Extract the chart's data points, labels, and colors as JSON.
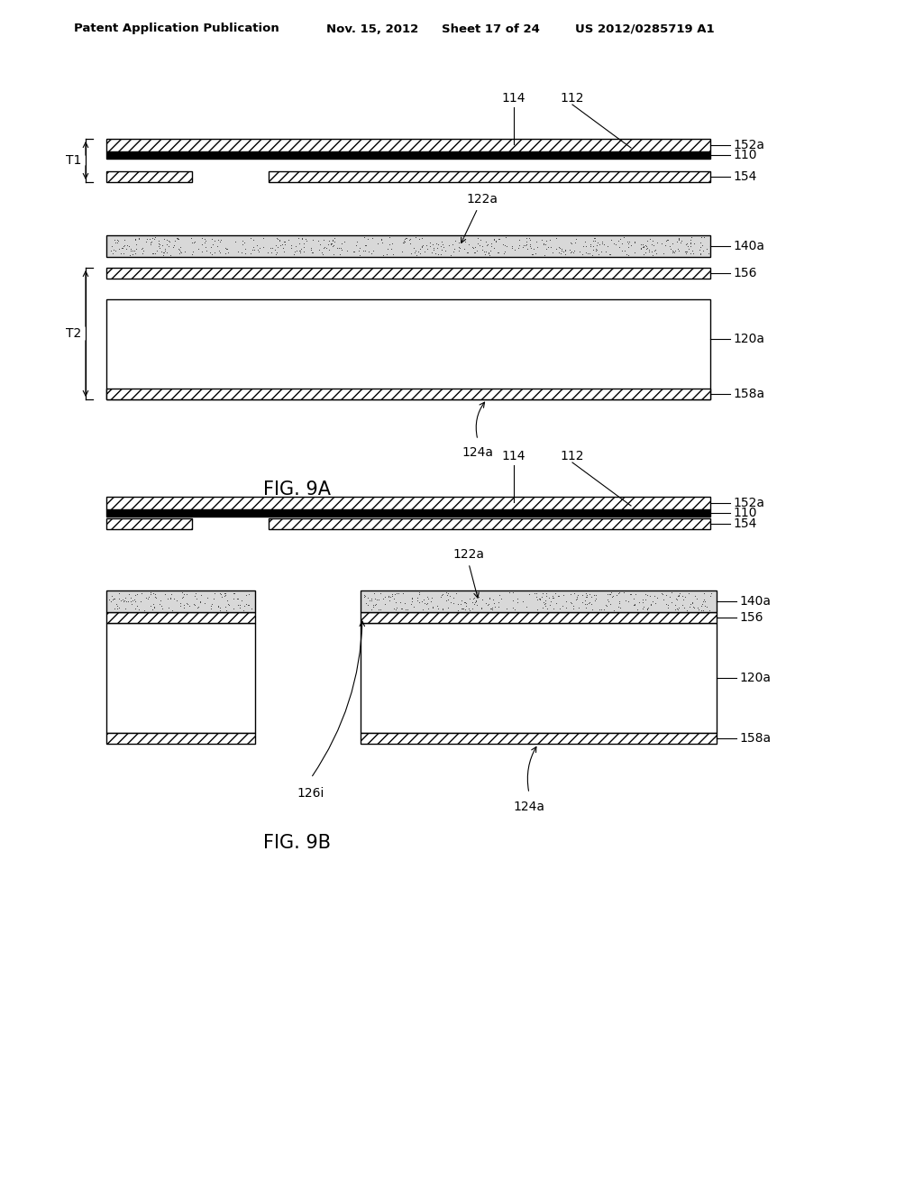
{
  "bg_color": "#ffffff",
  "header_text": "Patent Application Publication",
  "header_date": "Nov. 15, 2012",
  "header_sheet": "Sheet 17 of 24",
  "header_patent": "US 2012/0285719 A1",
  "fig9a_label": "FIG. 9A",
  "fig9b_label": "FIG. 9B"
}
